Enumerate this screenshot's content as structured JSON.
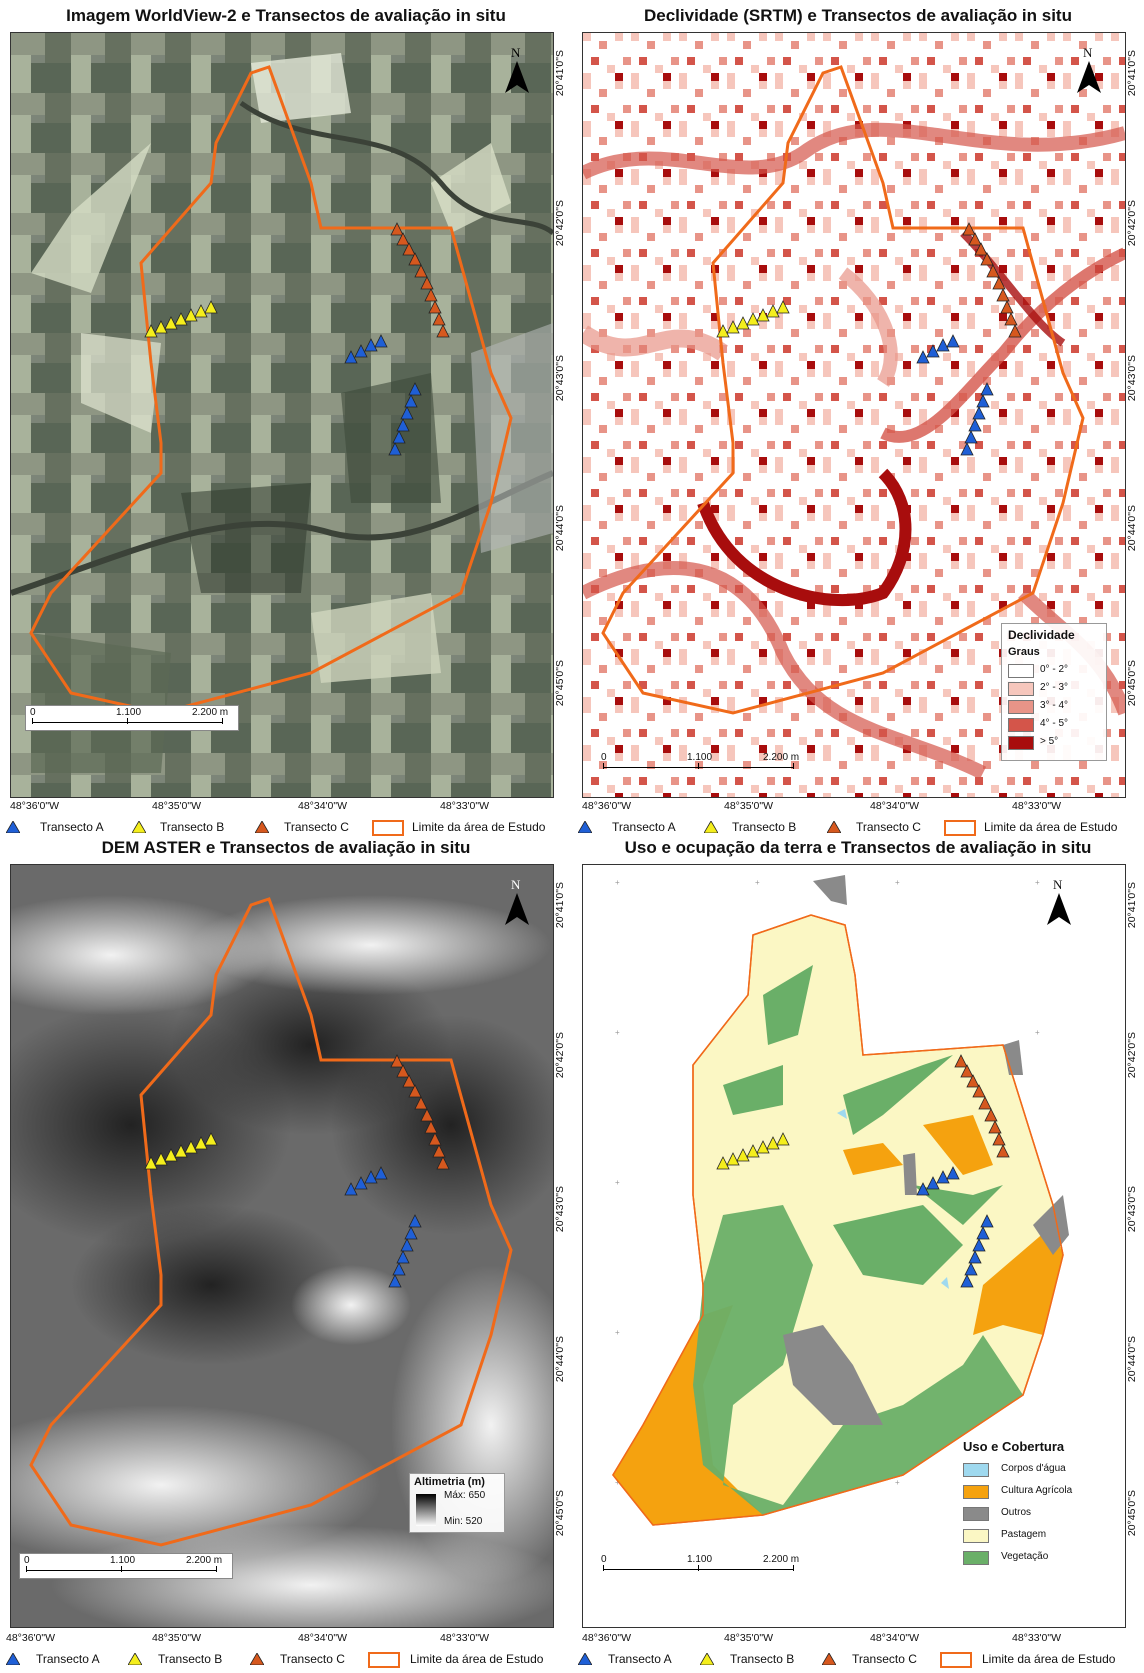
{
  "panels": [
    {
      "title": "Imagem WorldView-2  e Transectos de avaliação in situ"
    },
    {
      "title": "Declividade (SRTM)  e Transectos de avaliação in situ"
    },
    {
      "title": "DEM ASTER  e Transectos de avaliação in situ"
    },
    {
      "title": "Uso e ocupação da terra e Transectos de avaliação in situ"
    }
  ],
  "lon_labels": [
    "48°36'0\"W",
    "48°35'0\"W",
    "48°34'0\"W",
    "48°33'0\"W"
  ],
  "lat_labels": [
    "20°41'0\"S",
    "20°42'0\"S",
    "20°43'0\"S",
    "20°44'0\"S",
    "20°45'0\"S"
  ],
  "north_label": "N",
  "scale": {
    "zero": "0",
    "mid": "1.100",
    "end": "2.200 m"
  },
  "legend": {
    "transecto_a": "Transecto A",
    "transecto_b": "Transecto B",
    "transecto_c": "Transecto C",
    "limite": "Limite da área de Estudo"
  },
  "colors": {
    "transecto_a": "#1f5fd6",
    "transecto_b": "#f4ee1c",
    "transecto_c": "#d6581e",
    "limite": "#f06a1a"
  },
  "slope_legend": {
    "title": "Declividade",
    "subtitle": "Graus",
    "classes": [
      {
        "label": "0° - 2°",
        "color": "#ffffff"
      },
      {
        "label": "2° - 3°",
        "color": "#f6c6bc"
      },
      {
        "label": "3° - 4°",
        "color": "#e89488"
      },
      {
        "label": "4° - 5°",
        "color": "#d4554a"
      },
      {
        "label": "> 5°",
        "color": "#a80d0d"
      }
    ]
  },
  "dem_legend": {
    "title": "Altimetria (m)",
    "max": "Máx: 650",
    "min": "Min: 520"
  },
  "landuse_legend": {
    "title": "Uso e Cobertura",
    "classes": [
      {
        "label": "Corpos d'água",
        "color": "#9fd9ef"
      },
      {
        "label": "Cultura Agrícola",
        "color": "#f5a20f"
      },
      {
        "label": "Outros",
        "color": "#8a8a8a"
      },
      {
        "label": "Pastagem",
        "color": "#fbf7c4"
      },
      {
        "label": "Vegetação",
        "color": "#6aaf68"
      }
    ]
  }
}
